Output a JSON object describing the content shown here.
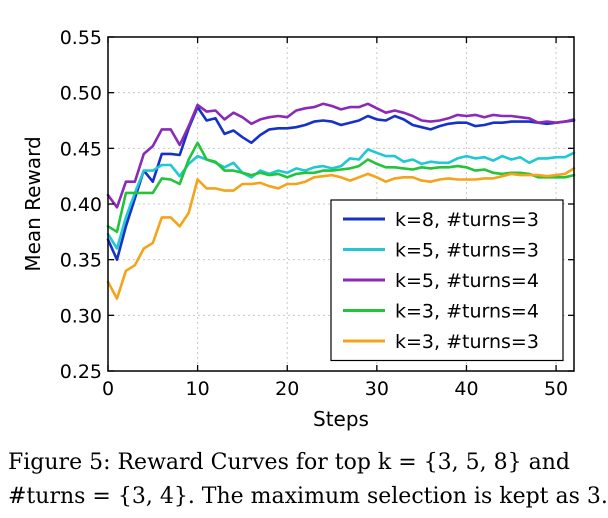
{
  "chart_data": {
    "type": "line",
    "title": "",
    "xlabel": "Steps",
    "ylabel": "Mean Reward",
    "xlim": [
      0,
      52
    ],
    "ylim": [
      0.25,
      0.55
    ],
    "xticks": [
      0,
      10,
      20,
      30,
      40,
      50
    ],
    "xtick_labels": [
      "0",
      "10",
      "20",
      "30",
      "40",
      "50"
    ],
    "yticks": [
      0.25,
      0.3,
      0.35,
      0.4,
      0.45,
      0.5,
      0.55
    ],
    "ytick_labels": [
      "0.25",
      "0.30",
      "0.35",
      "0.40",
      "0.45",
      "0.50",
      "0.55"
    ],
    "grid": true,
    "legend_position": "lower-right",
    "x": [
      0,
      1,
      2,
      3,
      4,
      5,
      6,
      7,
      8,
      9,
      10,
      11,
      12,
      13,
      14,
      15,
      16,
      17,
      18,
      19,
      20,
      21,
      22,
      23,
      24,
      25,
      26,
      27,
      28,
      29,
      30,
      31,
      32,
      33,
      34,
      35,
      36,
      37,
      38,
      39,
      40,
      41,
      42,
      43,
      44,
      45,
      46,
      47,
      48,
      49,
      50,
      51,
      52
    ],
    "series": [
      {
        "name": "k=8, #turns=3",
        "color": "#1631c7",
        "values": [
          0.368,
          0.35,
          0.38,
          0.405,
          0.43,
          0.42,
          0.445,
          0.445,
          0.444,
          0.468,
          0.487,
          0.475,
          0.477,
          0.463,
          0.466,
          0.46,
          0.455,
          0.462,
          0.467,
          0.468,
          0.468,
          0.469,
          0.471,
          0.474,
          0.475,
          0.474,
          0.471,
          0.473,
          0.475,
          0.479,
          0.476,
          0.475,
          0.479,
          0.476,
          0.471,
          0.469,
          0.467,
          0.47,
          0.472,
          0.473,
          0.473,
          0.47,
          0.471,
          0.473,
          0.473,
          0.474,
          0.474,
          0.474,
          0.473,
          0.472,
          0.473,
          0.474,
          0.475
        ]
      },
      {
        "name": "k=5, #turns=3",
        "color": "#1fc8d4",
        "values": [
          0.373,
          0.36,
          0.388,
          0.41,
          0.43,
          0.43,
          0.435,
          0.435,
          0.425,
          0.436,
          0.443,
          0.44,
          0.437,
          0.433,
          0.437,
          0.428,
          0.424,
          0.43,
          0.427,
          0.43,
          0.428,
          0.432,
          0.43,
          0.433,
          0.434,
          0.432,
          0.434,
          0.441,
          0.44,
          0.449,
          0.446,
          0.443,
          0.443,
          0.438,
          0.44,
          0.436,
          0.438,
          0.437,
          0.437,
          0.441,
          0.443,
          0.441,
          0.442,
          0.439,
          0.443,
          0.44,
          0.442,
          0.437,
          0.441,
          0.441,
          0.442,
          0.442,
          0.446
        ]
      },
      {
        "name": "k=5, #turns=4",
        "color": "#8b2ab8",
        "values": [
          0.408,
          0.397,
          0.42,
          0.42,
          0.445,
          0.452,
          0.467,
          0.467,
          0.453,
          0.47,
          0.489,
          0.483,
          0.484,
          0.476,
          0.482,
          0.478,
          0.472,
          0.476,
          0.478,
          0.479,
          0.478,
          0.484,
          0.486,
          0.487,
          0.49,
          0.488,
          0.485,
          0.487,
          0.487,
          0.49,
          0.486,
          0.482,
          0.484,
          0.482,
          0.479,
          0.475,
          0.474,
          0.475,
          0.477,
          0.48,
          0.479,
          0.48,
          0.478,
          0.48,
          0.479,
          0.479,
          0.478,
          0.477,
          0.473,
          0.474,
          0.473,
          0.474,
          0.476
        ]
      },
      {
        "name": "k=3, #turns=4",
        "color": "#22c43a",
        "values": [
          0.38,
          0.375,
          0.41,
          0.41,
          0.41,
          0.41,
          0.423,
          0.422,
          0.418,
          0.44,
          0.455,
          0.44,
          0.438,
          0.43,
          0.43,
          0.428,
          0.426,
          0.428,
          0.426,
          0.427,
          0.424,
          0.427,
          0.428,
          0.428,
          0.43,
          0.43,
          0.431,
          0.432,
          0.434,
          0.44,
          0.436,
          0.433,
          0.433,
          0.432,
          0.431,
          0.433,
          0.432,
          0.433,
          0.433,
          0.434,
          0.433,
          0.43,
          0.431,
          0.428,
          0.427,
          0.428,
          0.428,
          0.427,
          0.424,
          0.424,
          0.424,
          0.424,
          0.426
        ]
      },
      {
        "name": "k=3, #turns=3",
        "color": "#f5a31b",
        "values": [
          0.33,
          0.315,
          0.34,
          0.345,
          0.36,
          0.365,
          0.388,
          0.388,
          0.38,
          0.392,
          0.422,
          0.414,
          0.414,
          0.412,
          0.412,
          0.418,
          0.418,
          0.419,
          0.416,
          0.414,
          0.418,
          0.418,
          0.42,
          0.424,
          0.425,
          0.426,
          0.424,
          0.421,
          0.424,
          0.427,
          0.424,
          0.42,
          0.423,
          0.424,
          0.424,
          0.421,
          0.42,
          0.422,
          0.423,
          0.422,
          0.422,
          0.422,
          0.423,
          0.423,
          0.425,
          0.427,
          0.426,
          0.426,
          0.426,
          0.425,
          0.426,
          0.427,
          0.432
        ]
      }
    ]
  },
  "caption": {
    "line1": "Figure 5:  Reward Curves for top k = {3, 5, 8} and",
    "line2": "#turns = {3, 4}. The maximum selection is kept as 3."
  }
}
